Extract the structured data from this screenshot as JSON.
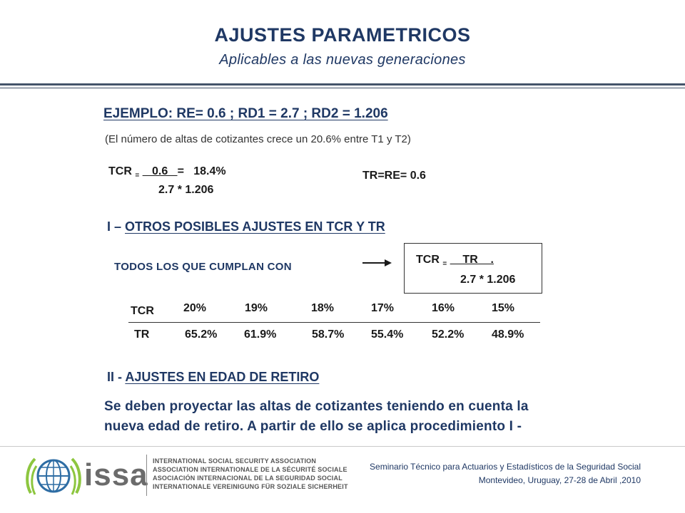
{
  "header": {
    "title": "AJUSTES PARAMETRICOS",
    "subtitle": "Aplicables a las  nuevas generaciones"
  },
  "example": {
    "heading": "EJEMPLO:  RE= 0.6 ; RD1 = 2.7 ; RD2 = 1.206",
    "note": "(El número de altas de cotizantes crece un 20.6% entre T1 y T2)",
    "tcr_label": "TCR",
    "eq_small": "=",
    "numerator": "   0.6   ",
    "equals_result": "=   18.4%",
    "denominator": "2.7 * 1.206",
    "tr_equation": "TR=RE= 0.6"
  },
  "section1": {
    "prefix": "I – ",
    "title": "OTROS POSIBLES AJUSTES EN TCR Y TR",
    "todos_label": "TODOS LOS QUE CUMPLAN CON",
    "box": {
      "tcr_label": "TCR",
      "eq_small": "=",
      "numerator": "    TR    .",
      "denominator": "2.7 * 1.206"
    }
  },
  "table": {
    "tcr_label": "TCR",
    "tr_label": "TR",
    "tcr_values": [
      "20%",
      "19%",
      "18%",
      "17%",
      "16%",
      "15%"
    ],
    "tr_values": [
      "65.2%",
      "61.9%",
      "58.7%",
      "55.4%",
      "52.2%",
      "48.9%"
    ]
  },
  "section2": {
    "prefix": "II - ",
    "title": "AJUSTES EN EDAD DE RETIRO",
    "body_line1": "Se deben proyectar las altas de cotizantes teniendo en cuenta la",
    "body_line2": "nueva edad de retiro. A partir de ello se aplica procedimiento  I -"
  },
  "footer": {
    "logo_text": "issa",
    "associations": [
      "INTERNATIONAL SOCIAL SECURITY ASSOCIATION",
      "ASSOCIATION INTERNATIONALE DE LA SÉCURITÉ SOCIALE",
      "ASOCIACIÓN INTERNACIONAL DE LA SEGURIDAD SOCIAL",
      "INTERNATIONALE VEREINIGUNG FÜR SOZIALE SICHERHEIT"
    ],
    "seminar_line1": "Seminario Técnico para Actuarios y Estadísticos de la Seguridad Social",
    "seminar_line2": "Montevideo, Uruguay, 27-28  de Abril ,2010"
  },
  "colors": {
    "title": "#1f3864",
    "rule": "#44546a",
    "logo_green": "#8dc63f",
    "logo_blue": "#2e6da4"
  }
}
